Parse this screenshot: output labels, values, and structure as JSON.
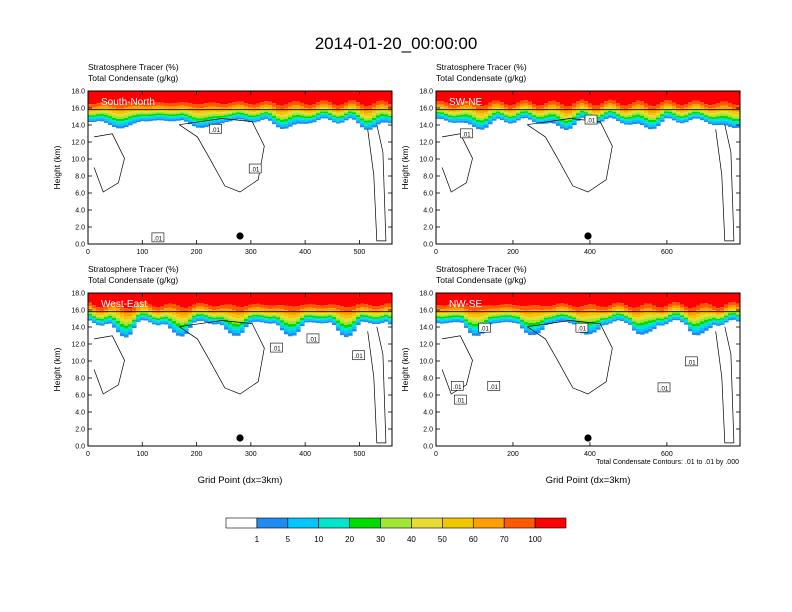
{
  "title": "2014-01-20_00:00:00",
  "footnote": "Total Condensate Contours: .01 to .01 by .000",
  "colorbar": {
    "colors": [
      "#ffffff",
      "#1e8cf0",
      "#00c8ff",
      "#00e6c8",
      "#00dc00",
      "#a0e632",
      "#e6dc32",
      "#f0c800",
      "#ffa000",
      "#ff5a00",
      "#ff0000"
    ],
    "labels": [
      "1",
      "5",
      "10",
      "20",
      "30",
      "40",
      "50",
      "60",
      "70",
      "100"
    ]
  },
  "chart_data": [
    {
      "type": "heatmap",
      "panel_title": "South-North",
      "subtitle_lines": [
        "Stratosphere Tracer   (%)",
        "Total Condensate   (g/kg)"
      ],
      "ylabel": "Height (km)",
      "xlabel": "",
      "xlim": [
        0,
        560
      ],
      "ylim": [
        0,
        18
      ],
      "xticks": [
        "0",
        "100",
        "200",
        "300",
        "400",
        "500"
      ],
      "yticks": [
        "0.0",
        "2.0",
        "4.0",
        "6.0",
        "8.0",
        "10.0",
        "12.0",
        "14.0",
        "16.0",
        "18.0"
      ],
      "contour_labels": [
        ".01",
        ".01",
        ".01"
      ],
      "marker_x": 280
    },
    {
      "type": "heatmap",
      "panel_title": "SW-NE",
      "subtitle_lines": [
        "Stratosphere Tracer   (%)",
        "Total Condensate   (g/kg)"
      ],
      "ylabel": "Height (km)",
      "xlabel": "",
      "xlim": [
        0,
        790
      ],
      "ylim": [
        0,
        18
      ],
      "xticks": [
        "0",
        "200",
        "400",
        "600"
      ],
      "yticks": [
        "0.0",
        "2.0",
        "4.0",
        "6.0",
        "8.0",
        "10.0",
        "12.0",
        "14.0",
        "16.0",
        "18.0"
      ],
      "contour_labels": [
        ".01",
        ".01"
      ],
      "marker_x": 395
    },
    {
      "type": "heatmap",
      "panel_title": "West-East",
      "subtitle_lines": [
        "Stratosphere Tracer   (%)",
        "Total Condensate   (g/kg)"
      ],
      "ylabel": "Height (km)",
      "xlabel": "Grid Point (dx=3km)",
      "xlim": [
        0,
        560
      ],
      "ylim": [
        0,
        18
      ],
      "xticks": [
        "0",
        "100",
        "200",
        "300",
        "400",
        "500"
      ],
      "yticks": [
        "0.0",
        "2.0",
        "4.0",
        "6.0",
        "8.0",
        "10.0",
        "12.0",
        "14.0",
        "16.0",
        "18.0"
      ],
      "contour_labels": [
        ".01",
        ".01",
        ".01"
      ],
      "marker_x": 280
    },
    {
      "type": "heatmap",
      "panel_title": "NW-SE",
      "subtitle_lines": [
        "Stratosphere Tracer   (%)",
        "Total Condensate   (g/kg)"
      ],
      "ylabel": "Height (km)",
      "xlabel": "Grid Point (dx=3km)",
      "xlim": [
        0,
        790
      ],
      "ylim": [
        0,
        18
      ],
      "xticks": [
        "0",
        "200",
        "400",
        "600"
      ],
      "yticks": [
        "0.0",
        "2.0",
        "4.0",
        "6.0",
        "8.0",
        "10.0",
        "12.0",
        "14.0",
        "16.0",
        "18.0"
      ],
      "contour_labels": [
        ".01",
        ".01",
        ".01",
        ".01",
        ".01",
        ".01",
        ".01"
      ],
      "marker_x": 395
    }
  ]
}
